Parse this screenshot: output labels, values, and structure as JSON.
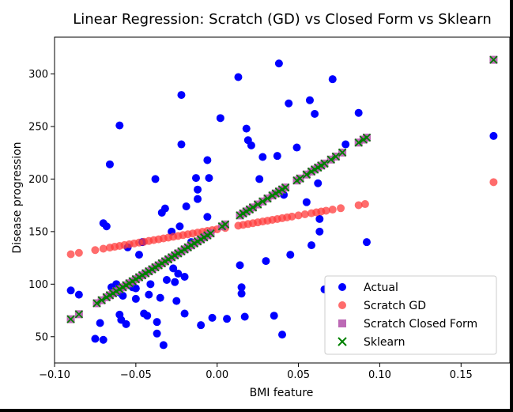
{
  "chart_data": {
    "type": "scatter",
    "title": "Linear Regression: Scratch (GD) vs Closed Form vs Sklearn",
    "xlabel": "BMI feature",
    "ylabel": "Disease progression",
    "xlim": [
      -0.1,
      0.18
    ],
    "ylim": [
      25,
      335
    ],
    "x_ticks": [
      -0.1,
      -0.05,
      0.0,
      0.05,
      0.1,
      0.15
    ],
    "x_tick_labels": [
      "−0.10",
      "−0.05",
      "0.00",
      "0.05",
      "0.10",
      "0.15"
    ],
    "y_ticks": [
      50,
      100,
      150,
      200,
      250,
      300
    ],
    "y_tick_labels": [
      "50",
      "100",
      "150",
      "200",
      "250",
      "300"
    ],
    "grid": false,
    "legend_position": "lower-right",
    "legend": [
      "Actual",
      "Scratch GD",
      "Scratch Closed Form",
      "Sklearn"
    ],
    "series": [
      {
        "name": "Actual",
        "marker": "circle",
        "color": "#0000ff",
        "points": [
          [
            -0.09,
            94
          ],
          [
            -0.085,
            90
          ],
          [
            -0.075,
            48
          ],
          [
            -0.072,
            63
          ],
          [
            -0.07,
            47
          ],
          [
            -0.07,
            158
          ],
          [
            -0.068,
            155
          ],
          [
            -0.066,
            214
          ],
          [
            -0.065,
            97
          ],
          [
            -0.062,
            100
          ],
          [
            -0.06,
            92
          ],
          [
            -0.06,
            71
          ],
          [
            -0.06,
            251
          ],
          [
            -0.059,
            66
          ],
          [
            -0.058,
            89
          ],
          [
            -0.056,
            62
          ],
          [
            -0.055,
            135
          ],
          [
            -0.052,
            97
          ],
          [
            -0.05,
            96
          ],
          [
            -0.05,
            86
          ],
          [
            -0.048,
            128
          ],
          [
            -0.046,
            140
          ],
          [
            -0.045,
            72
          ],
          [
            -0.043,
            70
          ],
          [
            -0.042,
            90
          ],
          [
            -0.041,
            100
          ],
          [
            -0.038,
            200
          ],
          [
            -0.037,
            53
          ],
          [
            -0.037,
            64
          ],
          [
            -0.035,
            87
          ],
          [
            -0.034,
            168
          ],
          [
            -0.033,
            42
          ],
          [
            -0.032,
            172
          ],
          [
            -0.031,
            104
          ],
          [
            -0.028,
            150
          ],
          [
            -0.027,
            115
          ],
          [
            -0.026,
            102
          ],
          [
            -0.025,
            84
          ],
          [
            -0.024,
            110
          ],
          [
            -0.023,
            155
          ],
          [
            -0.022,
            280
          ],
          [
            -0.022,
            233
          ],
          [
            -0.02,
            107
          ],
          [
            -0.02,
            72
          ],
          [
            -0.019,
            174
          ],
          [
            -0.016,
            140
          ],
          [
            -0.013,
            201
          ],
          [
            -0.012,
            190
          ],
          [
            -0.012,
            181
          ],
          [
            -0.01,
            61
          ],
          [
            -0.008,
            145
          ],
          [
            -0.006,
            218
          ],
          [
            -0.006,
            164
          ],
          [
            -0.005,
            201
          ],
          [
            -0.003,
            68
          ],
          [
            0.002,
            258
          ],
          [
            0.006,
            67
          ],
          [
            0.013,
            297
          ],
          [
            0.014,
            118
          ],
          [
            0.015,
            97
          ],
          [
            0.015,
            91
          ],
          [
            0.017,
            69
          ],
          [
            0.018,
            248
          ],
          [
            0.019,
            237
          ],
          [
            0.021,
            232
          ],
          [
            0.026,
            200
          ],
          [
            0.028,
            221
          ],
          [
            0.03,
            122
          ],
          [
            0.035,
            70
          ],
          [
            0.037,
            222
          ],
          [
            0.038,
            310
          ],
          [
            0.04,
            52
          ],
          [
            0.041,
            185
          ],
          [
            0.044,
            272
          ],
          [
            0.045,
            128
          ],
          [
            0.049,
            230
          ],
          [
            0.055,
            178
          ],
          [
            0.057,
            275
          ],
          [
            0.058,
            137
          ],
          [
            0.06,
            262
          ],
          [
            0.062,
            196
          ],
          [
            0.063,
            150
          ],
          [
            0.063,
            162
          ],
          [
            0.066,
            95
          ],
          [
            0.071,
            295
          ],
          [
            0.079,
            233
          ],
          [
            0.087,
            263
          ],
          [
            0.092,
            140
          ],
          [
            0.17,
            241
          ]
        ]
      },
      {
        "name": "Scratch GD",
        "marker": "circle",
        "color": "#ff3b3b",
        "x": [
          -0.09,
          -0.085,
          -0.075,
          -0.07,
          -0.066,
          -0.063,
          -0.06,
          -0.057,
          -0.054,
          -0.051,
          -0.048,
          -0.045,
          -0.042,
          -0.039,
          -0.036,
          -0.033,
          -0.03,
          -0.027,
          -0.024,
          -0.021,
          -0.018,
          -0.015,
          -0.012,
          -0.009,
          -0.006,
          -0.003,
          0.0,
          0.005,
          0.013,
          0.016,
          0.019,
          0.022,
          0.025,
          0.028,
          0.031,
          0.034,
          0.037,
          0.04,
          0.043,
          0.046,
          0.05,
          0.054,
          0.058,
          0.061,
          0.064,
          0.067,
          0.071,
          0.076,
          0.087,
          0.091,
          0.17
        ],
        "slope": 263.8,
        "intercept": 152.2
      },
      {
        "name": "Scratch Closed Form",
        "marker": "square",
        "color": "#b04fa8",
        "x": [
          -0.09,
          -0.085,
          -0.074,
          -0.071,
          -0.068,
          -0.066,
          -0.064,
          -0.062,
          -0.06,
          -0.058,
          -0.056,
          -0.054,
          -0.052,
          -0.05,
          -0.048,
          -0.046,
          -0.044,
          -0.042,
          -0.04,
          -0.038,
          -0.036,
          -0.034,
          -0.032,
          -0.03,
          -0.028,
          -0.026,
          -0.024,
          -0.022,
          -0.02,
          -0.018,
          -0.016,
          -0.014,
          -0.012,
          -0.01,
          -0.008,
          -0.006,
          -0.004,
          0.003,
          0.005,
          0.014,
          0.016,
          0.018,
          0.02,
          0.022,
          0.025,
          0.028,
          0.031,
          0.034,
          0.036,
          0.038,
          0.04,
          0.042,
          0.049,
          0.051,
          0.055,
          0.058,
          0.06,
          0.062,
          0.064,
          0.066,
          0.07,
          0.073,
          0.077,
          0.087,
          0.09,
          0.092,
          0.17
        ],
        "slope": 949.4,
        "intercept": 152.1
      },
      {
        "name": "Sklearn",
        "marker": "x",
        "color": "#008000",
        "same_x_as": "Scratch Closed Form",
        "slope": 949.4,
        "intercept": 152.1
      }
    ]
  },
  "colors": {
    "background": "#ffffff",
    "border": "#000000",
    "legend_border": "#cccccc"
  }
}
